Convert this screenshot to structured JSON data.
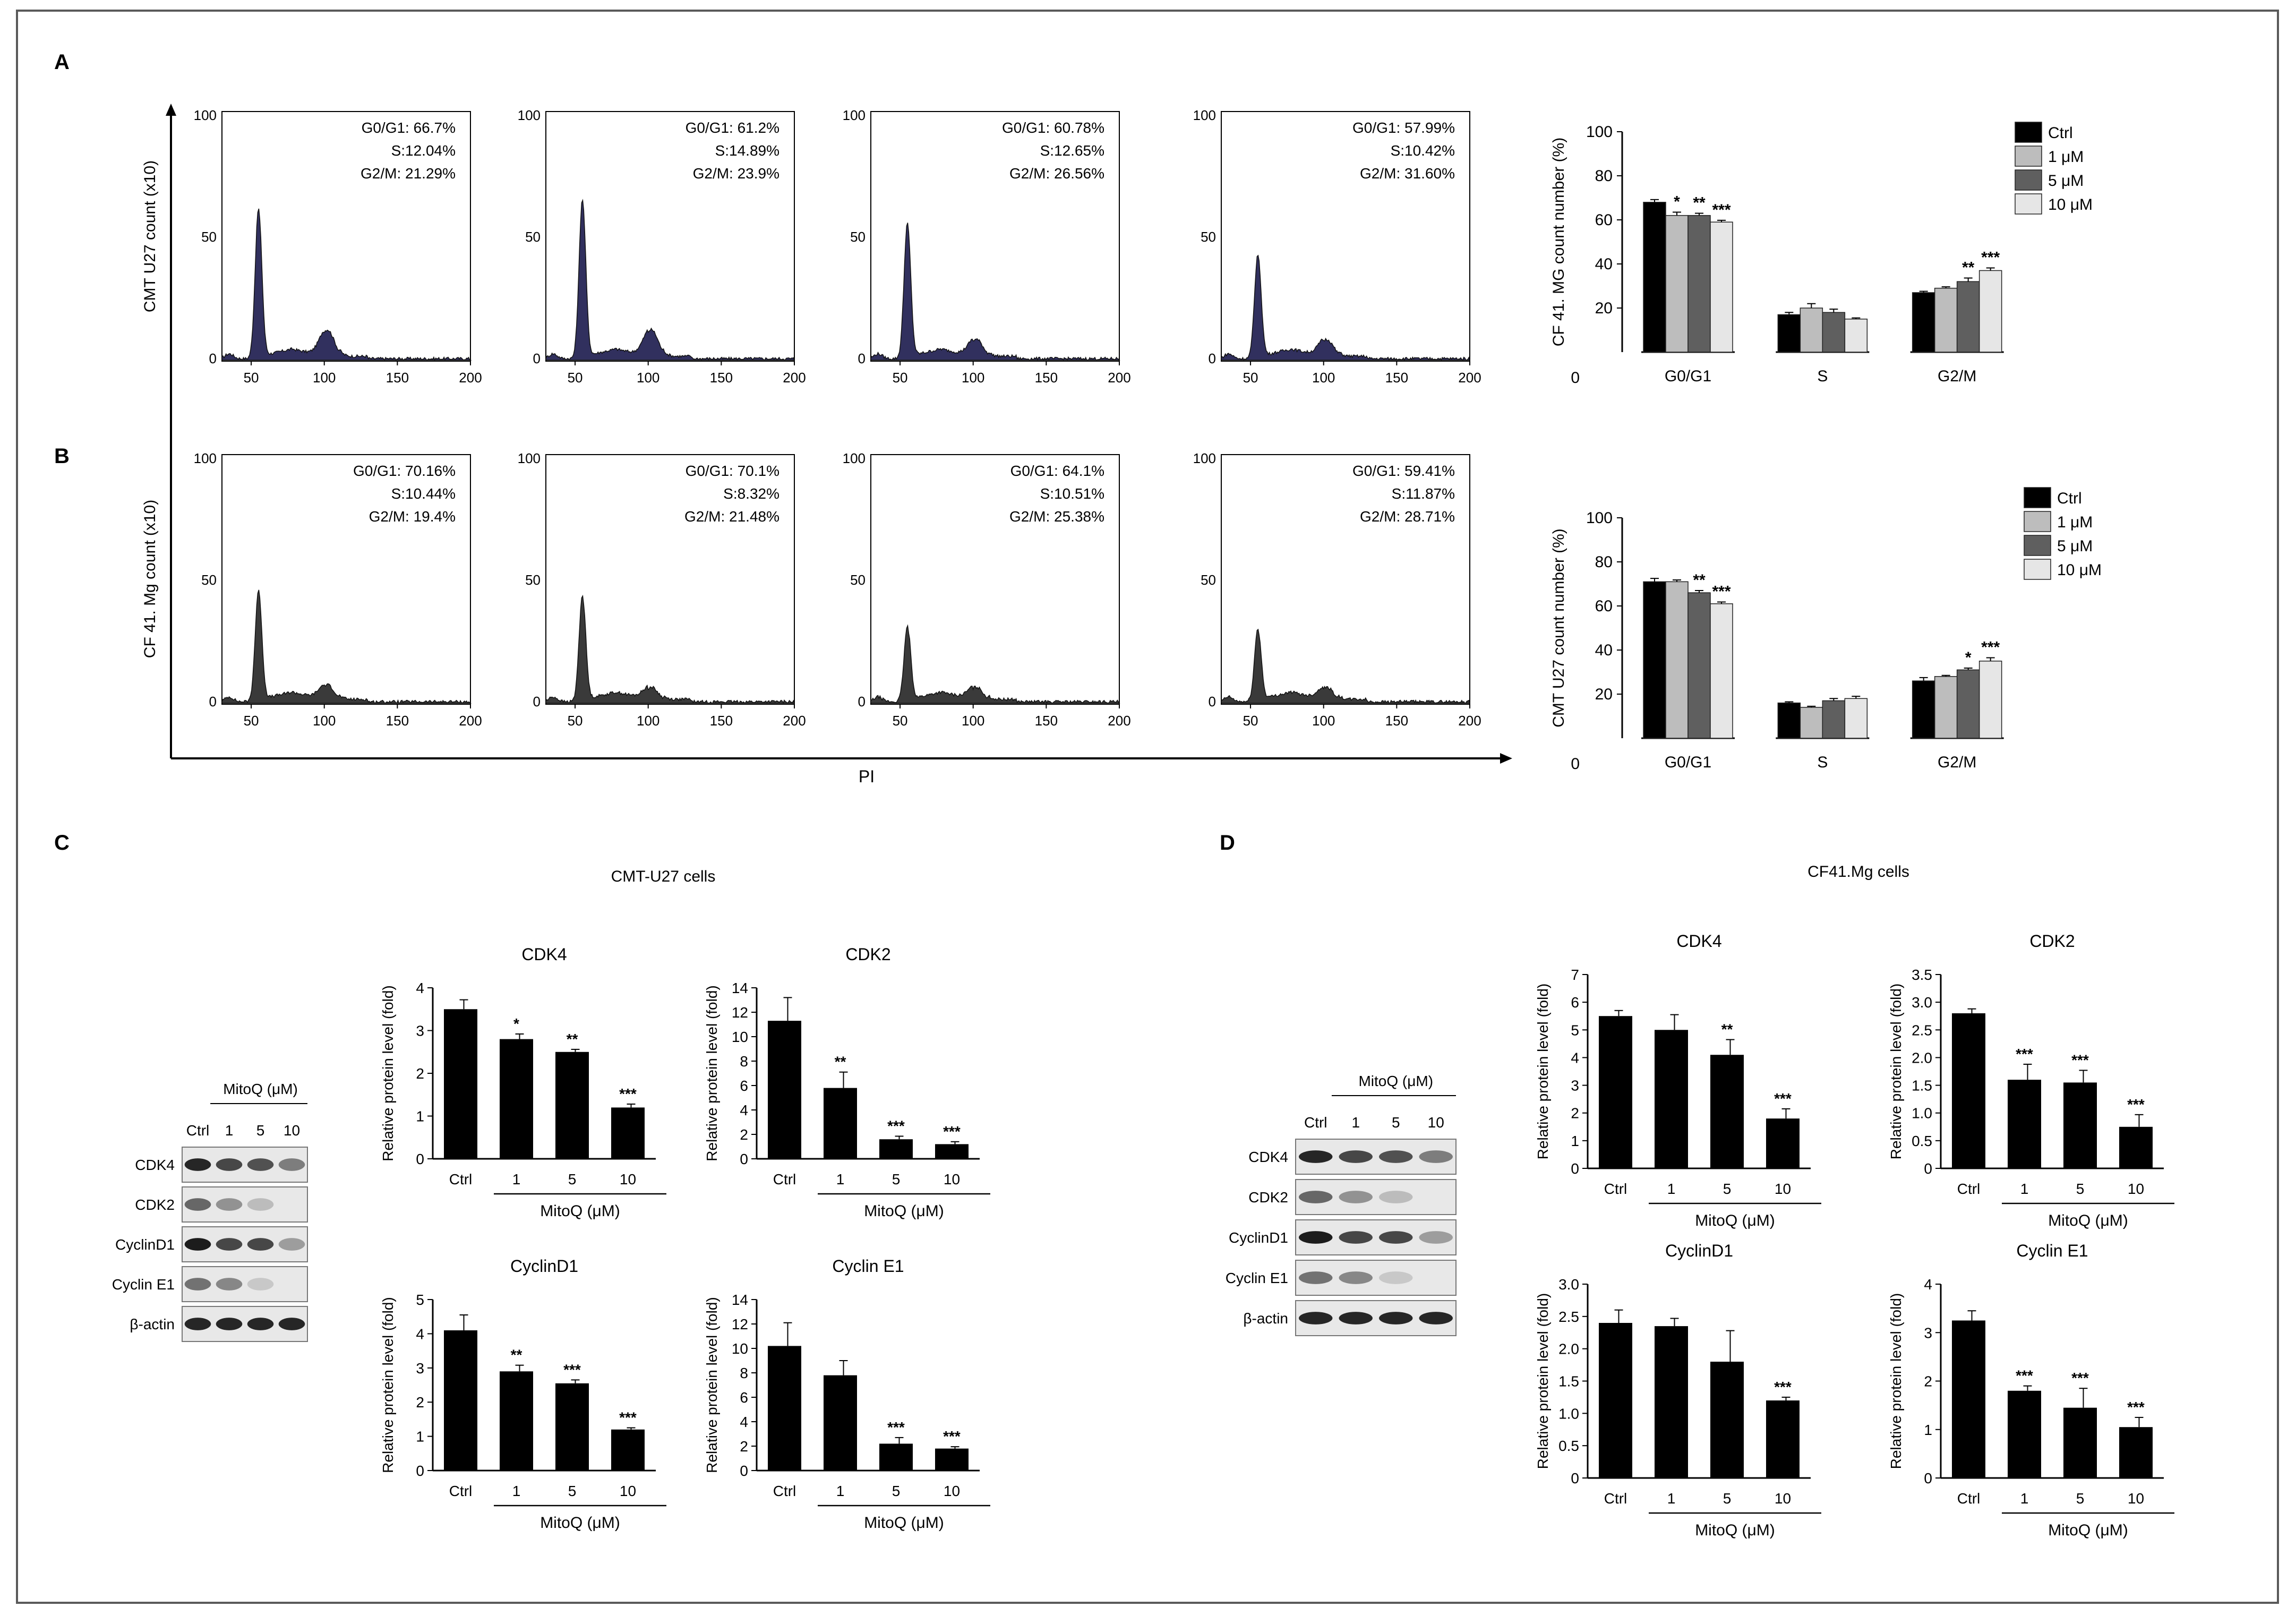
{
  "panel_labels": {
    "a": "A",
    "b": "B",
    "c": "C",
    "d": "D"
  },
  "flow": {
    "pi_label": "PI",
    "row_a_ylabel": "CMT U27 count (x10)",
    "row_b_ylabel": "CF 41. Mg count (x10)",
    "x_ticks": [
      "50",
      "100",
      "150",
      "200"
    ],
    "y_ticks": [
      "0",
      "50",
      "100"
    ],
    "row_a": [
      {
        "g0g1": "G0/G1: 66.7%",
        "s": "S:12.04%",
        "g2m": "G2/M: 21.29%",
        "g1_peak": 0.62,
        "g2_peak": 0.12
      },
      {
        "g0g1": "G0/G1: 61.2%",
        "s": "S:14.89%",
        "g2m": "G2/M: 23.9%",
        "g1_peak": 0.66,
        "g2_peak": 0.12
      },
      {
        "g0g1": "G0/G1: 60.78%",
        "s": "S:12.65%",
        "g2m": "G2/M: 26.56%",
        "g1_peak": 0.56,
        "g2_peak": 0.08
      },
      {
        "g0g1": "G0/G1: 57.99%",
        "s": "S:10.42%",
        "g2m": "G2/M: 31.60%",
        "g1_peak": 0.43,
        "g2_peak": 0.08
      }
    ],
    "row_b": [
      {
        "g0g1": "G0/G1: 70.16%",
        "s": "S:10.44%",
        "g2m": "G2/M: 19.4%",
        "g1_peak": 0.46,
        "g2_peak": 0.07
      },
      {
        "g0g1": "G0/G1: 70.1%",
        "s": "S:8.32%",
        "g2m": "G2/M: 21.48%",
        "g1_peak": 0.44,
        "g2_peak": 0.06
      },
      {
        "g0g1": "G0/G1: 64.1%",
        "s": "S:10.51%",
        "g2m": "G2/M: 25.38%",
        "g1_peak": 0.31,
        "g2_peak": 0.06
      },
      {
        "g0g1": "G0/G1: 59.41%",
        "s": "S:11.87%",
        "g2m": "G2/M: 28.71%",
        "g1_peak": 0.3,
        "g2_peak": 0.06
      }
    ]
  },
  "legend": [
    "Ctrl",
    "1 μM",
    "5 μM",
    "10 μM"
  ],
  "legend_colors": [
    "#000000",
    "#bdbdbd",
    "#5f5f5f",
    "#e6e6e6"
  ],
  "blot_c": {
    "title": "CMT-U27 cells",
    "treatment": "MitoQ (μM)",
    "lanes": [
      "Ctrl",
      "1",
      "5",
      "10"
    ],
    "proteins": [
      "CDK4",
      "CDK2",
      "CyclinD1",
      "Cyclin E1",
      "β-actin"
    ]
  },
  "blot_d": {
    "title": "CF41.Mg cells",
    "treatment": "MitoQ (μM)",
    "lanes": [
      "Ctrl",
      "1",
      "5",
      "10"
    ],
    "proteins": [
      "CDK4",
      "CDK2",
      "CyclinD1",
      "Cyclin E1",
      "β-actin"
    ]
  },
  "chart_data": [
    {
      "id": "A-bars",
      "type": "bar",
      "title": "",
      "ylabel": "CF 41. MG  count number (%)",
      "categories": [
        "G0/G1",
        "S",
        "G2/M"
      ],
      "ylim": [
        0,
        100
      ],
      "yticks": [
        "0",
        "20",
        "40",
        "60",
        "80",
        "100"
      ],
      "series": [
        {
          "name": "Ctrl",
          "values": [
            68,
            17,
            27
          ],
          "errors": [
            1.2,
            1,
            0.6
          ]
        },
        {
          "name": "1 μM",
          "values": [
            62,
            20,
            29
          ],
          "errors": [
            1.5,
            2,
            0.6
          ]
        },
        {
          "name": "5 μM",
          "values": [
            62,
            18,
            32
          ],
          "errors": [
            1,
            1.5,
            1.6
          ]
        },
        {
          "name": "10 μM",
          "values": [
            59,
            15,
            37
          ],
          "errors": [
            0.8,
            0.5,
            1.2
          ]
        }
      ],
      "annotations": [
        [
          "",
          "*",
          "**",
          "***"
        ],
        [
          "",
          "",
          "",
          ""
        ],
        [
          "",
          "",
          "**",
          "***"
        ]
      ]
    },
    {
      "id": "B-bars",
      "type": "bar",
      "title": "",
      "ylabel": "CMT U27 count number (%)",
      "categories": [
        "G0/G1",
        "S",
        "G2/M"
      ],
      "ylim": [
        0,
        100
      ],
      "yticks": [
        "0",
        "20",
        "40",
        "60",
        "80",
        "100"
      ],
      "series": [
        {
          "name": "Ctrl",
          "values": [
            71,
            16,
            26
          ],
          "errors": [
            1.5,
            0.5,
            1.5
          ]
        },
        {
          "name": "1 μM",
          "values": [
            71,
            14,
            28
          ],
          "errors": [
            0.8,
            0.5,
            0.5
          ]
        },
        {
          "name": "5 μM",
          "values": [
            66,
            17,
            31
          ],
          "errors": [
            1,
            1,
            0.8
          ]
        },
        {
          "name": "10 μM",
          "values": [
            61,
            18,
            35
          ],
          "errors": [
            0.8,
            1,
            1.5
          ]
        }
      ],
      "annotations": [
        [
          "",
          "",
          "**",
          "***"
        ],
        [
          "",
          "",
          "",
          ""
        ],
        [
          "",
          "",
          "*",
          "***"
        ]
      ]
    },
    {
      "id": "C-CDK4",
      "type": "bar",
      "title": "CDK4",
      "ylabel": "Relative protein level (fold)",
      "xlabel": "MitoQ (μM)",
      "categories": [
        "Ctrl",
        "1",
        "5",
        "10"
      ],
      "values": [
        3.5,
        2.8,
        2.5,
        1.2
      ],
      "errors": [
        0.22,
        0.12,
        0.06,
        0.08
      ],
      "stars": [
        "",
        "*",
        "**",
        "***"
      ],
      "ylim": [
        0,
        4
      ],
      "yticks": [
        "0",
        "1",
        "2",
        "3",
        "4"
      ]
    },
    {
      "id": "C-CDK2",
      "type": "bar",
      "title": "CDK2",
      "ylabel": "Relative protein level (fold)",
      "xlabel": "MitoQ (μM)",
      "categories": [
        "Ctrl",
        "1",
        "5",
        "10"
      ],
      "values": [
        11.3,
        5.8,
        1.6,
        1.2
      ],
      "errors": [
        1.9,
        1.3,
        0.25,
        0.2
      ],
      "stars": [
        "",
        "**",
        "***",
        "***"
      ],
      "ylim": [
        0,
        14
      ],
      "yticks": [
        "0",
        "2",
        "4",
        "6",
        "8",
        "10",
        "12",
        "14"
      ]
    },
    {
      "id": "C-CyclinD1",
      "type": "bar",
      "title": "CyclinD1",
      "ylabel": "Relative protein level (fold)",
      "xlabel": "MitoQ (μM)",
      "categories": [
        "Ctrl",
        "1",
        "5",
        "10"
      ],
      "values": [
        4.1,
        2.9,
        2.55,
        1.2
      ],
      "errors": [
        0.45,
        0.18,
        0.1,
        0.05
      ],
      "stars": [
        "",
        "**",
        "***",
        "***"
      ],
      "ylim": [
        0,
        5
      ],
      "yticks": [
        "0",
        "1",
        "2",
        "3",
        "4",
        "5"
      ]
    },
    {
      "id": "C-CyclinE1",
      "type": "bar",
      "title": "Cyclin E1",
      "ylabel": "Relative protein level (fold)",
      "xlabel": "MitoQ (μM)",
      "categories": [
        "Ctrl",
        "1",
        "5",
        "10"
      ],
      "values": [
        10.2,
        7.8,
        2.2,
        1.8
      ],
      "errors": [
        1.9,
        1.2,
        0.5,
        0.15
      ],
      "stars": [
        "",
        "",
        "***",
        "***"
      ],
      "ylim": [
        0,
        14
      ],
      "yticks": [
        "0",
        "2",
        "4",
        "6",
        "8",
        "10",
        "12",
        "14"
      ]
    },
    {
      "id": "D-CDK4",
      "type": "bar",
      "title": "CDK4",
      "ylabel": "Relative protein level (fold)",
      "xlabel": "MitoQ (μM)",
      "categories": [
        "Ctrl",
        "1",
        "5",
        "10"
      ],
      "values": [
        5.5,
        5.0,
        4.1,
        1.8
      ],
      "errors": [
        0.2,
        0.55,
        0.55,
        0.35
      ],
      "stars": [
        "",
        "",
        "**",
        "***"
      ],
      "ylim": [
        0,
        7
      ],
      "yticks": [
        "0",
        "1",
        "2",
        "3",
        "4",
        "5",
        "6",
        "7"
      ]
    },
    {
      "id": "D-CDK2",
      "type": "bar",
      "title": "CDK2",
      "ylabel": "Relative protein level (fold)",
      "xlabel": "MitoQ (μM)",
      "categories": [
        "Ctrl",
        "1",
        "5",
        "10"
      ],
      "values": [
        2.8,
        1.6,
        1.55,
        0.75
      ],
      "errors": [
        0.08,
        0.28,
        0.22,
        0.22
      ],
      "stars": [
        "",
        "***",
        "***",
        "***"
      ],
      "ylim": [
        0,
        3.5
      ],
      "yticks": [
        "0",
        "0.5",
        "1.0",
        "1.5",
        "2.0",
        "2.5",
        "3.0",
        "3.5"
      ]
    },
    {
      "id": "D-CyclinD1",
      "type": "bar",
      "title": "CyclinD1",
      "ylabel": "Relative protein level (fold)",
      "xlabel": "MitoQ (μM)",
      "categories": [
        "Ctrl",
        "1",
        "5",
        "10"
      ],
      "values": [
        2.4,
        2.35,
        1.8,
        1.2
      ],
      "errors": [
        0.2,
        0.12,
        0.48,
        0.05
      ],
      "stars": [
        "",
        "",
        "",
        "***"
      ],
      "ylim": [
        0,
        3
      ],
      "yticks": [
        "0",
        "0.5",
        "1.0",
        "1.5",
        "2.0",
        "2.5",
        "3.0"
      ]
    },
    {
      "id": "D-CyclinE1",
      "type": "bar",
      "title": "Cyclin E1",
      "ylabel": "Relative protein level (fold)",
      "xlabel": "MitoQ (μM)",
      "categories": [
        "Ctrl",
        "1",
        "5",
        "10"
      ],
      "values": [
        3.25,
        1.8,
        1.45,
        1.05
      ],
      "errors": [
        0.2,
        0.1,
        0.4,
        0.2
      ],
      "stars": [
        "",
        "***",
        "***",
        "***"
      ],
      "ylim": [
        0,
        4
      ],
      "yticks": [
        "0",
        "1",
        "2",
        "3",
        "4"
      ]
    }
  ]
}
